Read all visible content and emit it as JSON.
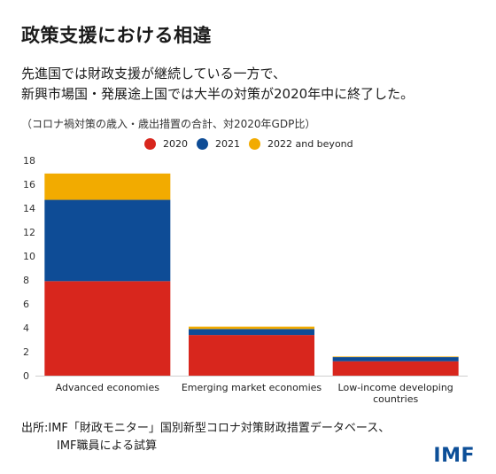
{
  "title": "政策支援における相違",
  "subtitle": {
    "line1": "先進国では財政支援が継続している一方で、",
    "line2": "新興市場国・発展途上国では大半の対策が2020年中に終了した。"
  },
  "note": "（コロナ禍対策の歳入・歳出措置の合計、対2020年GDP比）",
  "source": {
    "line1": "出所:IMF「財政モニター」国別新型コロナ対策財政措置データベース、",
    "line2": "IMF職員による試算"
  },
  "logo": "IMF",
  "colors": {
    "s2020": "#d8261d",
    "s2021": "#0e4c96",
    "s2022": "#f2ab00"
  },
  "chart_data": {
    "type": "bar",
    "stacked": true,
    "categories": [
      "Advanced economies",
      "Emerging market economies",
      "Low-income developing countries"
    ],
    "category_lines": [
      [
        "Advanced economies"
      ],
      [
        "Emerging market economies"
      ],
      [
        "Low-income developing",
        "countries"
      ]
    ],
    "series": [
      {
        "name": "2020",
        "color": "#d8261d",
        "values": [
          7.9,
          3.4,
          1.2
        ]
      },
      {
        "name": "2021",
        "color": "#0e4c96",
        "values": [
          6.8,
          0.5,
          0.35
        ]
      },
      {
        "name": "2022 and beyond",
        "color": "#f2ab00",
        "values": [
          2.2,
          0.2,
          0.05
        ]
      }
    ],
    "ylim": [
      0,
      18
    ],
    "yticks": [
      0,
      2,
      4,
      6,
      8,
      10,
      12,
      14,
      16,
      18
    ],
    "grid": false,
    "legend": "top-center"
  }
}
